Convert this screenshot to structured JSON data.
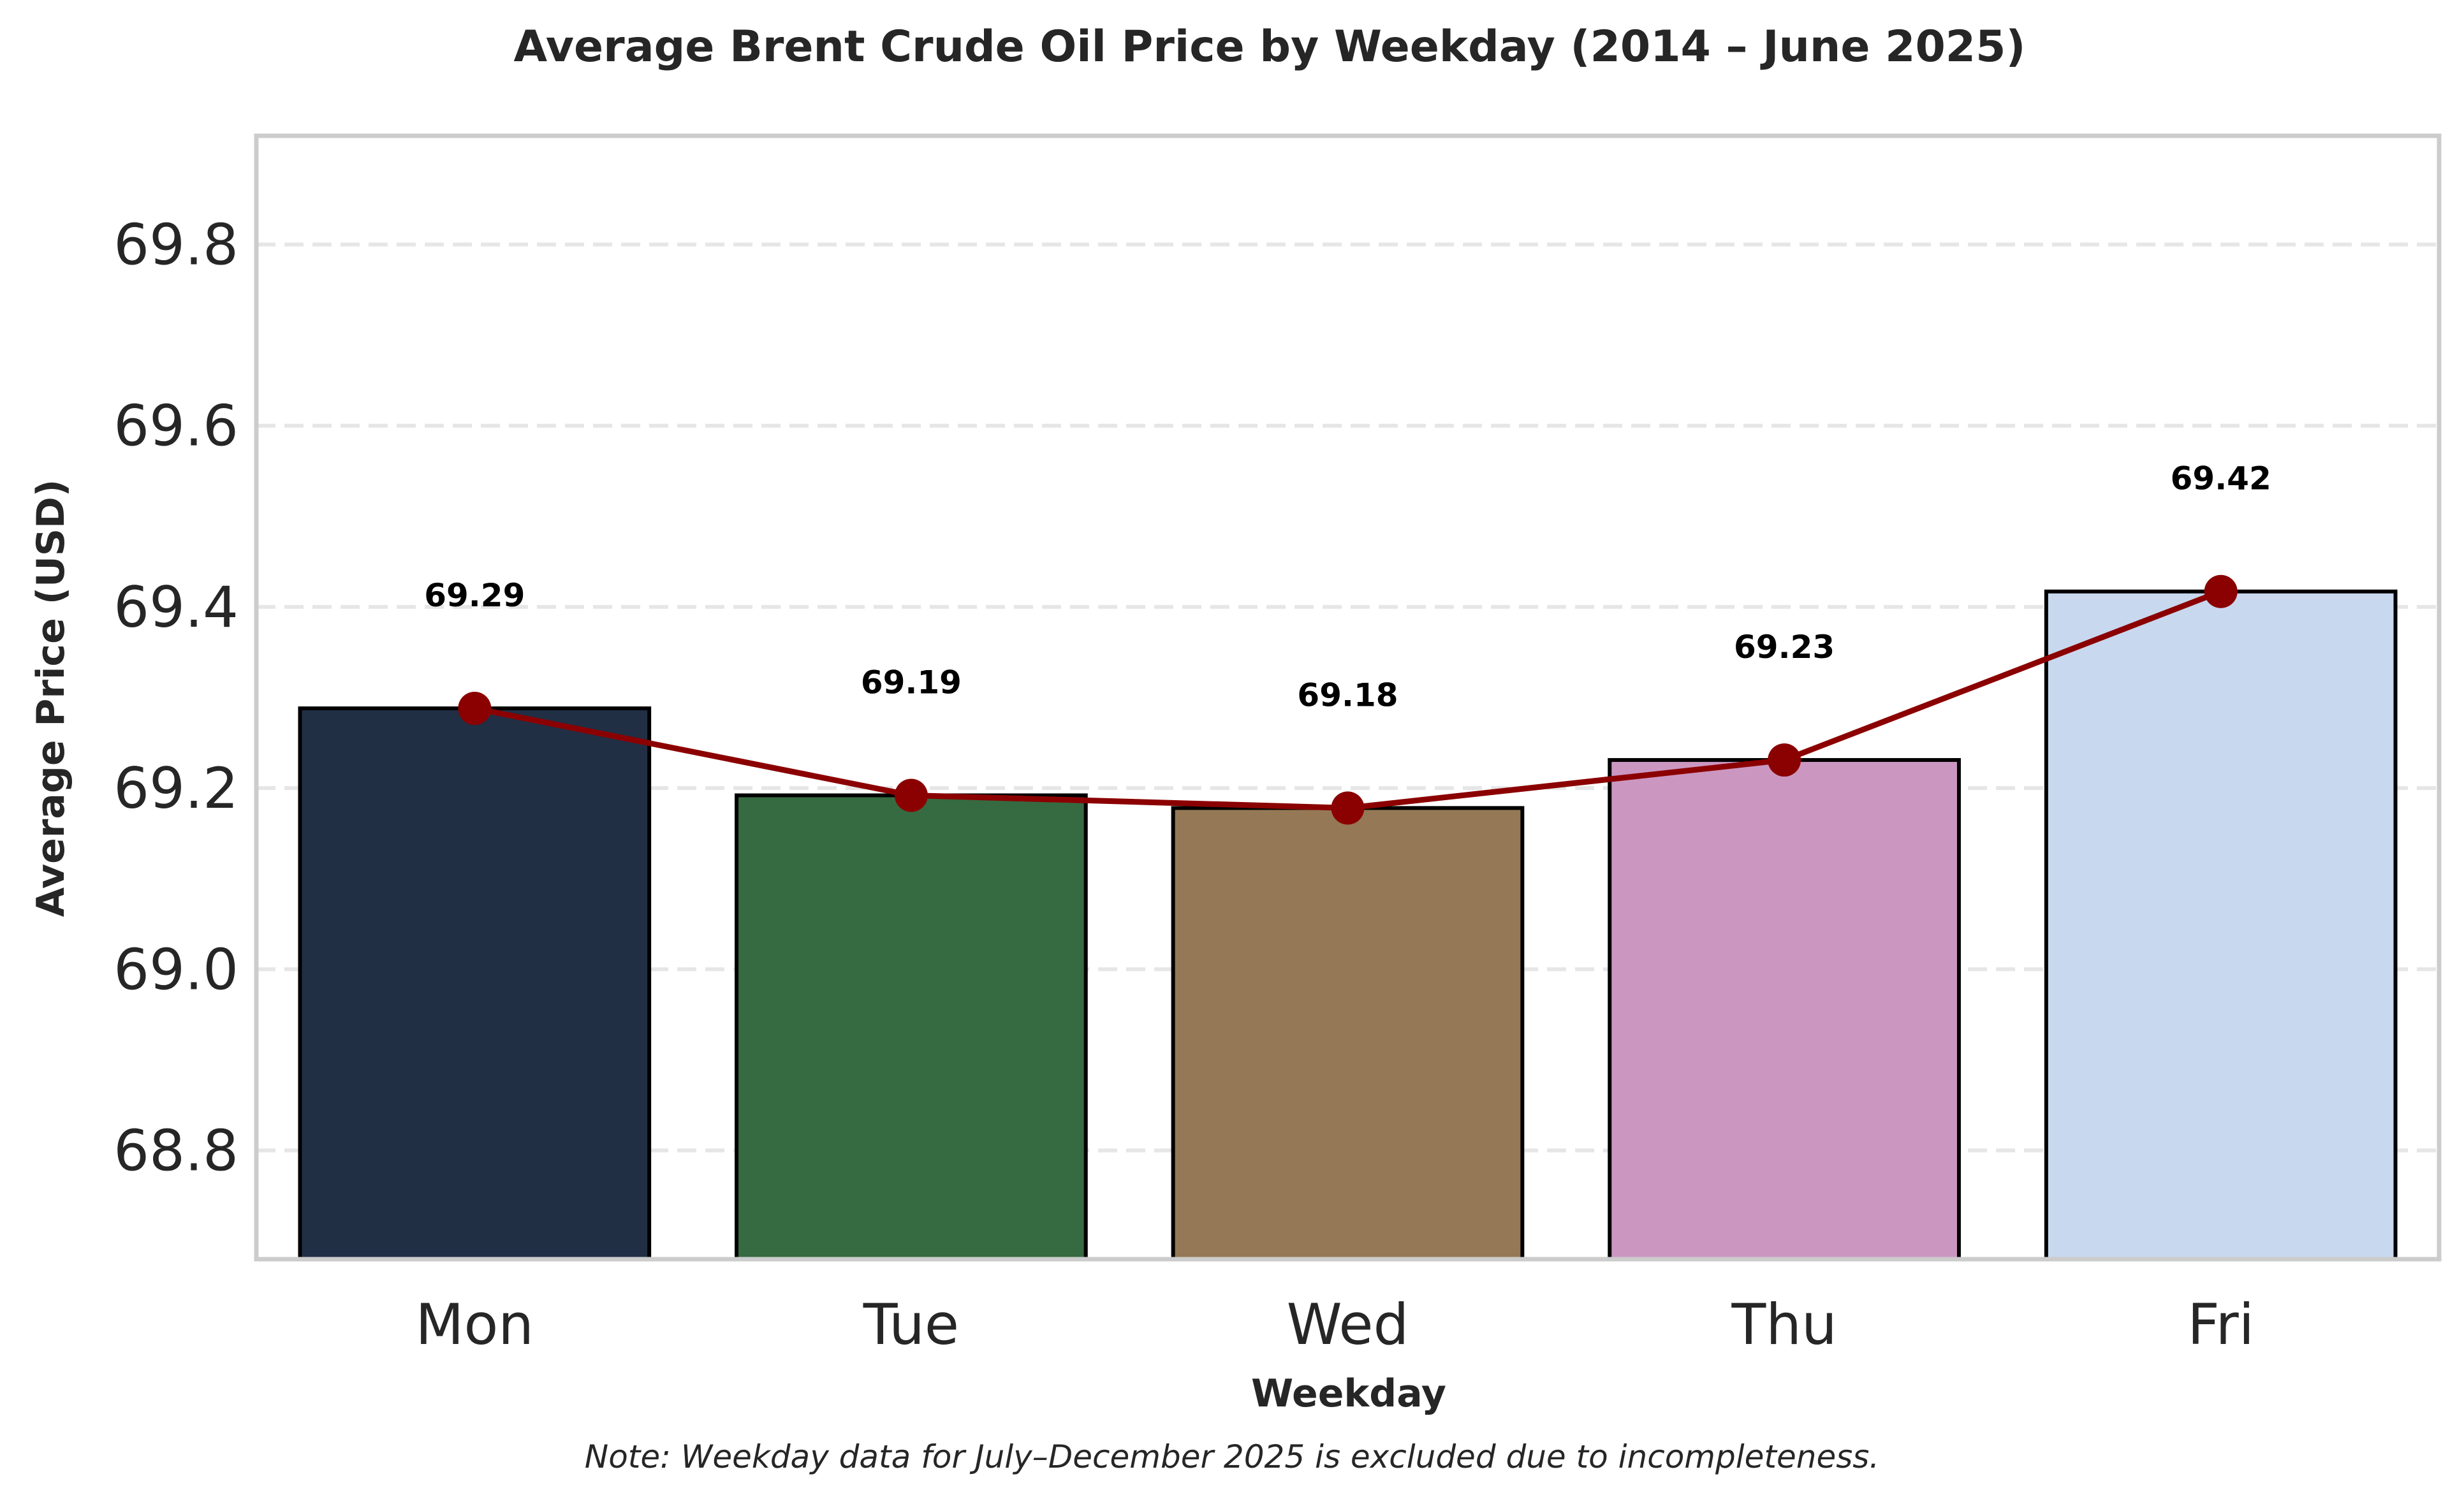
{
  "chart_data": {
    "type": "bar",
    "title": "Average Brent Crude Oil Price by Weekday (2014 – June 2025)",
    "xlabel": "Weekday",
    "ylabel": "Average Price (USD)",
    "categories": [
      "Mon",
      "Tue",
      "Wed",
      "Thu",
      "Fri"
    ],
    "values": [
      69.288,
      69.192,
      69.178,
      69.231,
      69.417
    ],
    "data_labels": [
      "69.29",
      "69.19",
      "69.18",
      "69.23",
      "69.42"
    ],
    "bar_colors": [
      "#212f45",
      "#366a41",
      "#957855",
      "#cb97c1",
      "#c8d8ee"
    ],
    "line_overlay": {
      "color": "#8b0000",
      "marker": "circle"
    },
    "ylim": [
      68.68,
      69.92
    ],
    "yticks": [
      68.8,
      69.0,
      69.2,
      69.4,
      69.6,
      69.8
    ],
    "ytick_labels": [
      "68.8",
      "69.0",
      "69.2",
      "69.4",
      "69.6",
      "69.8"
    ],
    "grid": "horizontal-dashed",
    "note": "Note: Weekday data for July–December 2025 is excluded due to incompleteness."
  }
}
